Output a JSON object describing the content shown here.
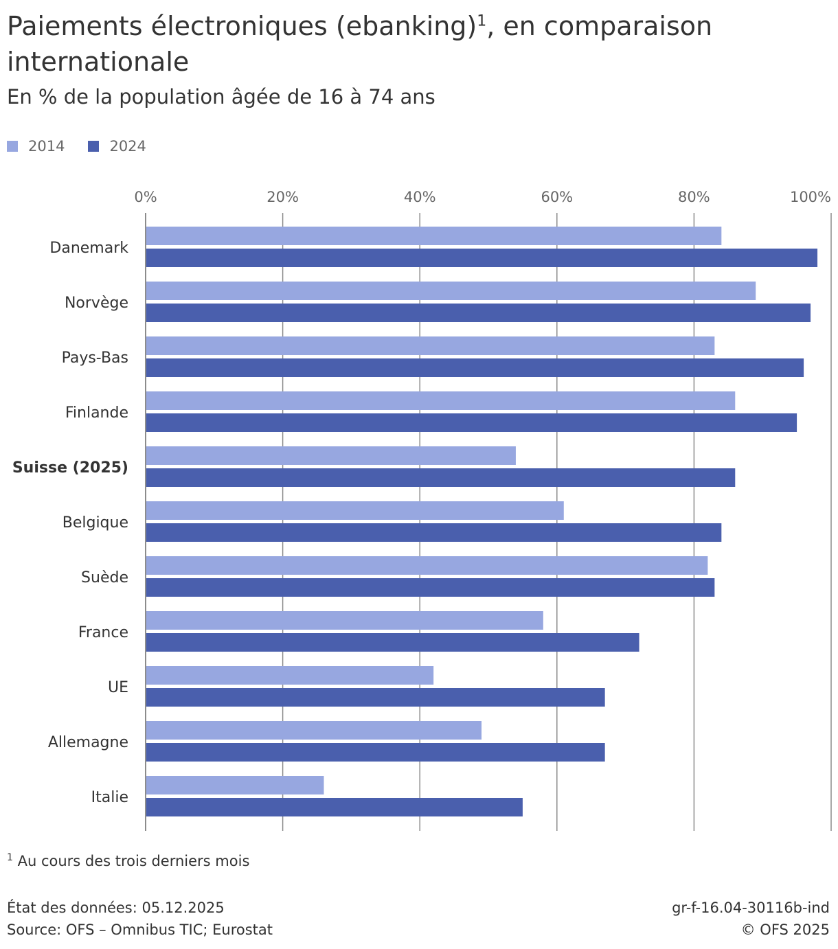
{
  "title": "Paiements électroniques (ebanking)",
  "title_sup": "1",
  "title_rest": ", en comparaison internationale",
  "subtitle": "En % de la population âgée de 16 à 74 ans",
  "footnote_marker": "1",
  "footnote": " Au cours des trois derniers mois",
  "data_state": "État des données: 05.12.2025",
  "source": "Source: OFS – Omnibus TIC; Eurostat",
  "chart_id": "gr-f-16.04-30116b-ind",
  "copyright": "© OFS 2025",
  "colors": {
    "series_2014": "#97a7e0",
    "series_2024": "#4a5fad",
    "grid": "#8c8c8c",
    "axis_text": "#666666",
    "label_text": "#333333"
  },
  "chart_data": {
    "type": "bar",
    "orientation": "horizontal",
    "title": "Paiements électroniques (ebanking)¹, en comparaison internationale",
    "subtitle": "En % de la population âgée de 16 à 74 ans",
    "categories": [
      "Danemark",
      "Norvège",
      "Pays-Bas",
      "Finlande",
      "Suisse (2025)",
      "Belgique",
      "Suède",
      "France",
      "UE",
      "Allemagne",
      "Italie"
    ],
    "highlight_category": "Suisse (2025)",
    "series": [
      {
        "name": "2014",
        "values": [
          84,
          89,
          83,
          86,
          54,
          61,
          82,
          58,
          42,
          49,
          26
        ]
      },
      {
        "name": "2024",
        "values": [
          98,
          97,
          96,
          95,
          86,
          84,
          83,
          72,
          67,
          67,
          55
        ]
      }
    ],
    "xlim": [
      0,
      100
    ],
    "ticks": [
      0,
      20,
      40,
      60,
      80,
      100
    ],
    "tick_labels": [
      "0%",
      "20%",
      "40%",
      "60%",
      "80%",
      "100%"
    ],
    "grid": true,
    "legend_position": "top-left"
  }
}
